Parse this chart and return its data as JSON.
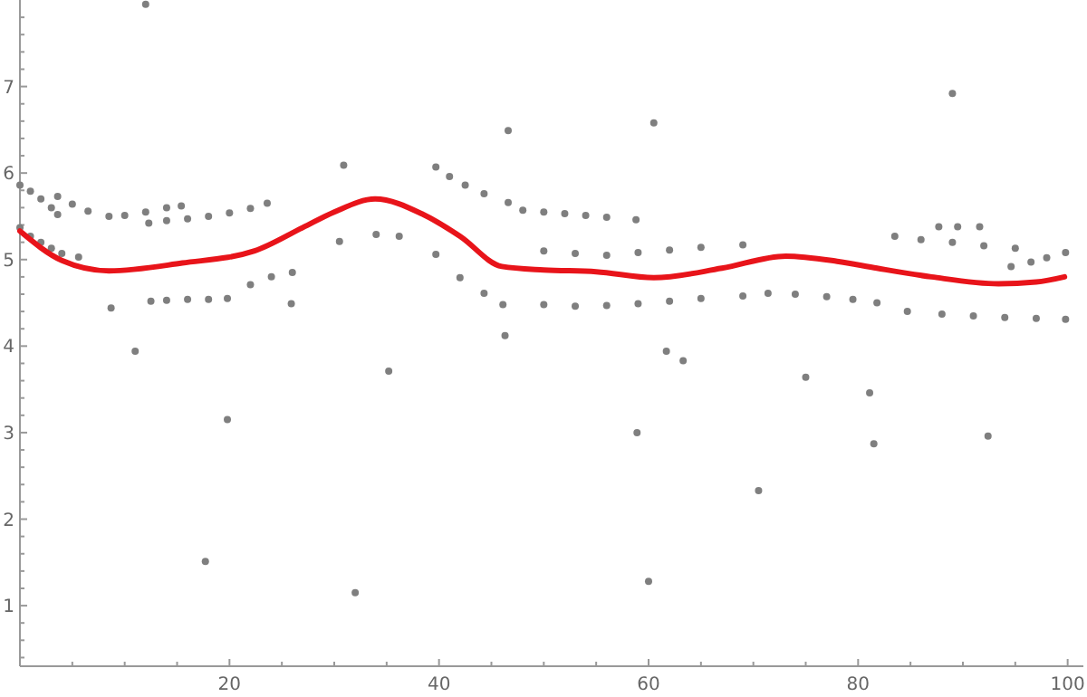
{
  "chart_data": {
    "type": "scatter",
    "xlim": [
      0,
      101.5
    ],
    "ylim": [
      0.3,
      8.0
    ],
    "xticks": [
      {
        "value": 5,
        "label": null
      },
      {
        "value": 10,
        "label": null
      },
      {
        "value": 15,
        "label": null
      },
      20,
      {
        "value": 25,
        "label": null
      },
      {
        "value": 30,
        "label": null
      },
      {
        "value": 35,
        "label": null
      },
      40,
      {
        "value": 45,
        "label": null
      },
      {
        "value": 50,
        "label": null
      },
      {
        "value": 55,
        "label": null
      },
      60,
      {
        "value": 65,
        "label": null
      },
      {
        "value": 70,
        "label": null
      },
      {
        "value": 75,
        "label": null
      },
      80,
      {
        "value": 85,
        "label": null
      },
      {
        "value": 90,
        "label": null
      },
      {
        "value": 95,
        "label": null
      },
      100
    ],
    "yticks": [
      {
        "value": 0.4,
        "label": null
      },
      {
        "value": 0.6,
        "label": null
      },
      {
        "value": 0.8,
        "label": null
      },
      1,
      {
        "value": 1.2,
        "label": null
      },
      {
        "value": 1.4,
        "label": null
      },
      {
        "value": 1.6,
        "label": null
      },
      {
        "value": 1.8,
        "label": null
      },
      2,
      {
        "value": 2.2,
        "label": null
      },
      {
        "value": 2.4,
        "label": null
      },
      {
        "value": 2.6,
        "label": null
      },
      {
        "value": 2.8,
        "label": null
      },
      3,
      {
        "value": 3.2,
        "label": null
      },
      {
        "value": 3.4,
        "label": null
      },
      {
        "value": 3.6,
        "label": null
      },
      {
        "value": 3.8,
        "label": null
      },
      4,
      {
        "value": 4.2,
        "label": null
      },
      {
        "value": 4.4,
        "label": null
      },
      {
        "value": 4.6,
        "label": null
      },
      {
        "value": 4.8,
        "label": null
      },
      5,
      {
        "value": 5.2,
        "label": null
      },
      {
        "value": 5.4,
        "label": null
      },
      {
        "value": 5.6,
        "label": null
      },
      {
        "value": 5.8,
        "label": null
      },
      6,
      {
        "value": 6.2,
        "label": null
      },
      {
        "value": 6.4,
        "label": null
      },
      {
        "value": 6.6,
        "label": null
      },
      {
        "value": 6.8,
        "label": null
      },
      7,
      {
        "value": 7.2,
        "label": null
      },
      {
        "value": 7.4,
        "label": null
      },
      {
        "value": 7.6,
        "label": null
      },
      {
        "value": 7.8,
        "label": null
      }
    ],
    "grid": false,
    "series": [
      {
        "marker": "circle",
        "color": "#7f7f7f",
        "x": [
          12.0,
          30.9,
          46.6,
          60.5,
          89.0,
          11.0,
          19.8,
          35.2,
          46.3,
          8.7,
          25.9,
          61.7,
          63.3,
          75.0,
          81.1,
          17.7,
          32.0,
          58.9,
          60.0,
          70.5,
          81.5,
          92.4,
          0,
          1,
          2,
          3,
          3.6,
          3.6,
          5,
          6.5,
          8.5,
          10,
          12,
          14,
          15.4,
          12.3,
          14,
          16,
          18,
          20,
          22,
          23.6,
          0,
          1,
          2,
          3,
          4,
          5.6,
          12.5,
          14,
          16,
          18,
          19.8,
          22,
          24,
          26,
          30.5,
          34,
          36.2,
          39.7,
          42,
          44.3,
          46.1,
          39.7,
          41,
          42.5,
          44.3,
          46.6,
          48,
          50,
          52,
          54,
          56,
          58.8,
          50,
          53,
          56,
          59,
          62,
          65,
          69,
          50,
          53,
          56,
          59,
          62,
          65,
          69,
          71.4,
          74,
          77,
          79.5,
          81.8,
          84.7,
          88,
          91,
          94,
          97,
          99.8,
          83.5,
          86,
          89,
          92,
          95,
          87.7,
          89.5,
          91.6,
          94.6,
          96.5,
          98,
          99.8
        ],
        "values": [
          7.95,
          6.09,
          6.49,
          6.58,
          6.92,
          3.94,
          3.15,
          3.71,
          4.12,
          4.44,
          4.49,
          3.94,
          3.83,
          3.64,
          3.46,
          1.51,
          1.15,
          3.0,
          1.28,
          2.33,
          2.87,
          2.96,
          5.86,
          5.79,
          5.7,
          5.6,
          5.52,
          5.73,
          5.64,
          5.56,
          5.5,
          5.51,
          5.55,
          5.6,
          5.62,
          5.42,
          5.45,
          5.47,
          5.5,
          5.54,
          5.59,
          5.65,
          5.37,
          5.27,
          5.2,
          5.13,
          5.07,
          5.03,
          4.52,
          4.53,
          4.54,
          4.54,
          4.55,
          4.71,
          4.8,
          4.85,
          5.21,
          5.29,
          5.27,
          5.06,
          4.79,
          4.61,
          4.48,
          6.07,
          5.96,
          5.86,
          5.76,
          5.66,
          5.57,
          5.55,
          5.53,
          5.51,
          5.49,
          5.46,
          5.1,
          5.07,
          5.05,
          5.08,
          5.11,
          5.14,
          5.17,
          4.48,
          4.46,
          4.47,
          4.49,
          4.52,
          4.55,
          4.58,
          4.61,
          4.6,
          4.57,
          4.54,
          4.5,
          4.4,
          4.37,
          4.35,
          4.33,
          4.32,
          4.31,
          5.27,
          5.23,
          5.2,
          5.16,
          5.13,
          5.38,
          5.38,
          5.38,
          4.92,
          4.97,
          5.02,
          5.08
        ]
      },
      {
        "type": "line",
        "color": "#e8141a",
        "x": [
          0,
          4,
          8.5,
          15.5,
          22.4,
          27,
          30,
          33.9,
          38.5,
          42,
          46,
          50,
          55,
          60.5,
          67,
          73.1,
          78,
          81.8,
          87,
          93.4,
          97,
          99.7
        ],
        "values": [
          5.33,
          4.99,
          4.87,
          4.96,
          5.1,
          5.37,
          5.55,
          5.7,
          5.52,
          5.27,
          4.92,
          4.88,
          4.86,
          4.79,
          4.9,
          5.04,
          4.98,
          4.9,
          4.8,
          4.72,
          4.74,
          4.8
        ]
      }
    ]
  }
}
